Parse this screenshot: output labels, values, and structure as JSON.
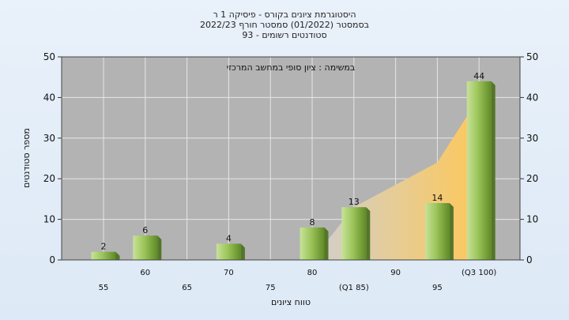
{
  "chart_data": {
    "type": "bar",
    "title_lines": [
      "היסטוגרמת ציונים בקורס - פיסיקה 1 ר",
      "בסמסטר  (01/2022)  סמסטר חורף 2022/23",
      "סטודנטים רשומים - 93"
    ],
    "annotation": "במשימה : ציון סופי במחשב המרכזי",
    "xlabel": "טווח ציונים",
    "ylabel": "מספר סטודנטים",
    "ylim": [
      0,
      50
    ],
    "yticks": [
      0,
      10,
      20,
      30,
      40,
      50
    ],
    "categories": [
      "55",
      "60",
      "65",
      "70",
      "75",
      "80",
      "(Q1 85)",
      "90",
      "95",
      "(Q3 100)"
    ],
    "values": [
      2,
      6,
      0,
      4,
      0,
      8,
      13,
      0,
      14,
      44
    ],
    "data_labels": [
      "2",
      "6",
      "",
      "4",
      "",
      "8",
      "13",
      "",
      "14",
      "44"
    ],
    "area_series": {
      "name": "cumulative-area",
      "start_category": "80",
      "values": [
        0,
        13,
        18.5,
        24,
        40
      ]
    },
    "colors": {
      "plot_bg": "#b3b3b3",
      "bar_light": "#cfe6a0",
      "bar_dark": "#6e9a2e",
      "area": "#fdc85a",
      "area_light": "#d9d9d9"
    }
  }
}
